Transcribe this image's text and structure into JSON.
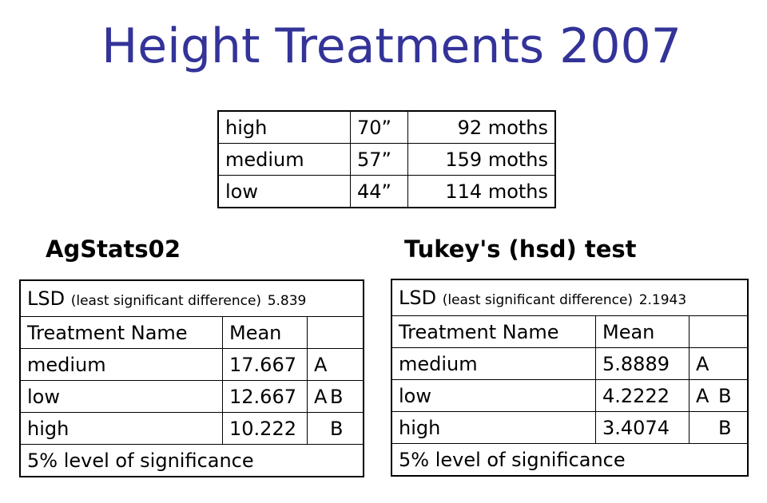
{
  "title": "Height Treatments 2007",
  "summary": [
    {
      "name": "high",
      "height": "70”",
      "moths": "92 moths"
    },
    {
      "name": "medium",
      "height": "57”",
      "moths": "159 moths"
    },
    {
      "name": "low",
      "height": "44”",
      "moths": "114 moths"
    }
  ],
  "agstats": {
    "heading": "AgStats02",
    "lsd_label": "LSD",
    "lsd_desc": "(least significant difference)",
    "lsd_value": "5.839",
    "col_treatment": "Treatment Name",
    "col_mean": "Mean",
    "rows": [
      {
        "name": "medium",
        "mean": "17.667",
        "group_a": "A",
        "group_b": ""
      },
      {
        "name": "low",
        "mean": "12.667",
        "group_a": "A",
        "group_b": "B"
      },
      {
        "name": "high",
        "mean": "10.222",
        "group_a": "",
        "group_b": "B"
      }
    ],
    "footer": "5% level of significance"
  },
  "tukey": {
    "heading": "Tukey's (hsd) test",
    "lsd_label": "LSD",
    "lsd_desc": "(least significant difference)",
    "lsd_value": "2.1943",
    "col_treatment": "Treatment Name",
    "col_mean": "Mean",
    "rows": [
      {
        "name": "medium",
        "mean": "5.8889",
        "group_a": "A",
        "group_b": ""
      },
      {
        "name": "low",
        "mean": "4.2222",
        "group_a": "A",
        "group_b": "B"
      },
      {
        "name": "high",
        "mean": "3.4074",
        "group_a": "",
        "group_b": "B"
      }
    ],
    "footer": "5% level of significance"
  }
}
